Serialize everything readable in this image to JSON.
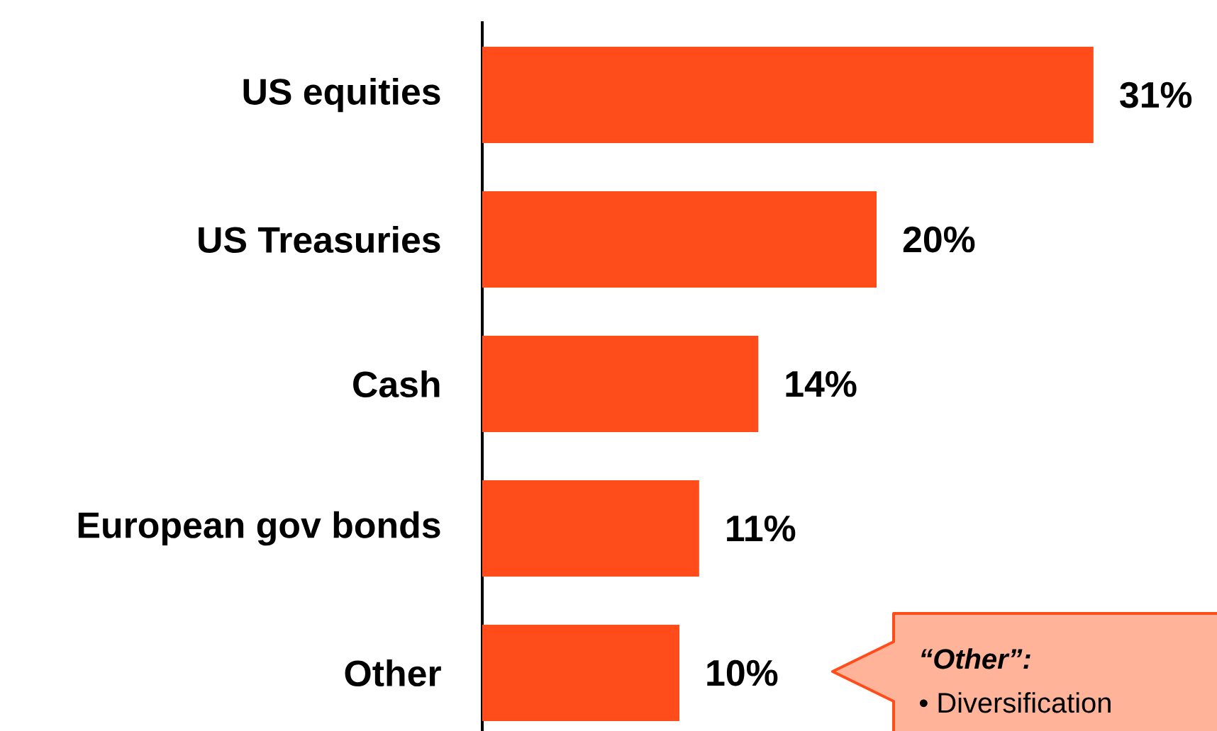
{
  "chart_data": {
    "type": "bar",
    "orientation": "horizontal",
    "categories": [
      "US equities",
      "US Treasuries",
      "Cash",
      "European gov bonds",
      "Other"
    ],
    "values": [
      31,
      20,
      14,
      11,
      10
    ],
    "value_labels": [
      "31%",
      "20%",
      "14%",
      "11%",
      "10%"
    ],
    "color": "#ff4c1a",
    "annotations": [
      "*“Other”:*",
      "•  Diversification"
    ]
  }
}
